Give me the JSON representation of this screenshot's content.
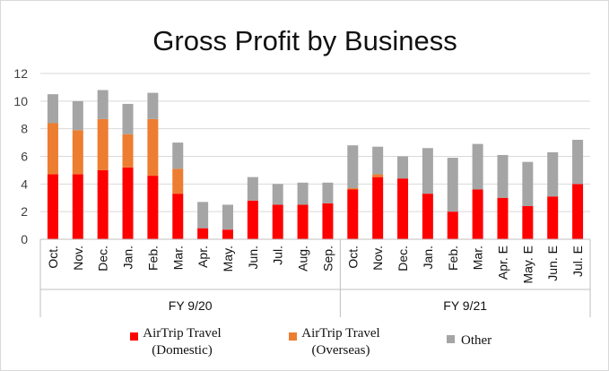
{
  "chart_data": {
    "type": "bar",
    "stacked": true,
    "title": "Gross Profit by Business",
    "categories": [
      "Oct.",
      "Nov.",
      "Dec.",
      "Jan.",
      "Feb.",
      "Mar.",
      "Apr.",
      "May.",
      "Jun.",
      "Jul.",
      "Aug.",
      "Sep.",
      "Oct.",
      "Nov.",
      "Dec.",
      "Jan.",
      "Feb.",
      "Mar.",
      "Apr. E",
      "May. E",
      "Jun. E",
      "Jul. E"
    ],
    "groups": [
      {
        "label": "FY 9/20",
        "count": 12
      },
      {
        "label": "FY 9/21",
        "count": 10
      }
    ],
    "series": [
      {
        "name": "AirTrip Travel (Domestic)",
        "legend_lines": [
          "AirTrip Travel",
          "(Domestic)"
        ],
        "color": "#ff0000",
        "values": [
          4.7,
          4.7,
          5.0,
          5.2,
          4.6,
          3.3,
          0.8,
          0.7,
          2.8,
          2.5,
          2.5,
          2.6,
          3.6,
          4.5,
          4.4,
          3.3,
          2.0,
          3.6,
          3.0,
          2.4,
          3.1,
          4.0
        ]
      },
      {
        "name": "AirTrip Travel (Overseas)",
        "legend_lines": [
          "AirTrip Travel",
          "(Overseas)"
        ],
        "color": "#ed7d31",
        "values": [
          3.7,
          3.2,
          3.7,
          2.4,
          4.1,
          1.8,
          0.0,
          0.0,
          0.0,
          0.0,
          0.0,
          0.0,
          0.1,
          0.2,
          0.0,
          0.0,
          0.0,
          0.0,
          0.0,
          0.0,
          0.0,
          0.0
        ]
      },
      {
        "name": "Other",
        "legend_lines": [
          "Other"
        ],
        "color": "#a5a5a5",
        "values": [
          2.1,
          2.1,
          2.1,
          2.2,
          1.9,
          1.9,
          1.9,
          1.8,
          1.7,
          1.5,
          1.6,
          1.5,
          3.1,
          2.0,
          1.6,
          3.3,
          3.9,
          3.3,
          3.1,
          3.2,
          3.2,
          3.2
        ]
      }
    ],
    "ylim": [
      0,
      12
    ],
    "yticks": [
      0,
      2,
      4,
      6,
      8,
      10,
      12
    ],
    "grid": true,
    "legend_position": "bottom"
  }
}
